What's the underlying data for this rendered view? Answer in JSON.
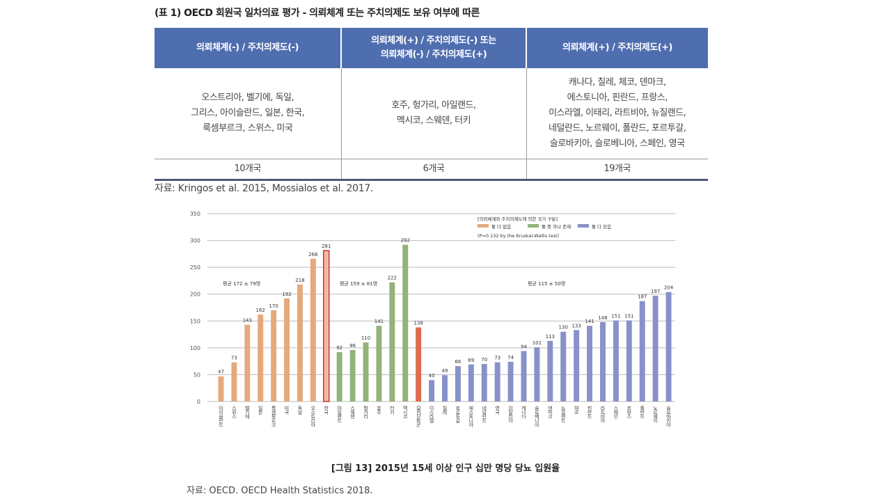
{
  "table": {
    "title": "(표 1) OECD 회원국 일차의료 평가 - 의뢰체계 또는 주치의제도 보유 여부에 따른",
    "headers": [
      "의뢰체계(-) / 주치의제도(-)",
      "의뢰체계(+) / 주치의제도(-) 또는\n의뢰체계(-) / 주치의제도(+)",
      "의뢰체계(+) / 주치의제도(+)"
    ],
    "countries": [
      [
        "오스트리아, 벨기에, 독일,",
        "그리스, 아이슬란드, 일본, 한국,",
        "룩셈부르크, 스위스, 미국"
      ],
      [
        "호주, 헝가리, 아일랜드,",
        "멕시코, 스웨덴, 터키"
      ],
      [
        "캐나다, 칠레, 체코, 덴마크,",
        "에스토니아, 핀란드, 프랑스,",
        "이스라엘, 이태리, 라트비아, 뉴질랜드,",
        "네덜란드, 노르웨이, 폴란드, 포르투갈,",
        "슬로바키아, 슬로베니아, 스페인, 영국"
      ]
    ],
    "counts": [
      "10개국",
      "6개국",
      "19개국"
    ],
    "source": "자료:  Kringos et al. 2015, Mossialos et al. 2017."
  },
  "figure": {
    "title": "[그림 13] 2015년 15세 이상 인구 십만 명당 당뇨 입원율",
    "source": "자료: OECD. OECD Health Statistics 2018."
  },
  "chart_data": {
    "type": "bar",
    "title": "",
    "xlabel": "",
    "ylabel": "",
    "ylim": [
      0,
      350
    ],
    "yticks": [
      0,
      50,
      100,
      150,
      200,
      250,
      300,
      350
    ],
    "grid": true,
    "legend_title": "[의뢰체계와 주치의제도에 의한 국가 구분]",
    "legend": [
      {
        "name": "둘 다 없음",
        "color": "#e5a97c"
      },
      {
        "name": "둘 중 하나 존재",
        "color": "#93b37a"
      },
      {
        "name": "둘 다 있음",
        "color": "#8892c8"
      }
    ],
    "legend_note": "(P=0.132 by the Kruskal-Wallis test)",
    "legend_position": "top-right",
    "annotations": [
      {
        "text": "평균 172 ± 79명",
        "group": "none"
      },
      {
        "text": "평균 159 ± 81명",
        "group": "one"
      },
      {
        "text": "평균 115 ± 50명",
        "group": "both"
      }
    ],
    "colors": {
      "none": "#e5a97c",
      "one": "#93b37a",
      "both": "#8892c8",
      "korea_fill": "#f3b9a3",
      "korea_stroke": "#c0392b",
      "oecd": "#dd6b4d"
    },
    "bars": [
      {
        "label": "아이슬란드",
        "value": 47,
        "group": "none"
      },
      {
        "label": "스위스",
        "value": 73,
        "group": "none"
      },
      {
        "label": "벨기에",
        "value": 143,
        "group": "none"
      },
      {
        "label": "일본",
        "value": 162,
        "group": "none"
      },
      {
        "label": "룩셈부르크",
        "value": 170,
        "group": "none"
      },
      {
        "label": "미국",
        "value": 192,
        "group": "none"
      },
      {
        "label": "독일",
        "value": 218,
        "group": "none"
      },
      {
        "label": "오스트리아",
        "value": 266,
        "group": "none"
      },
      {
        "label": "한국",
        "value": 281,
        "group": "korea"
      },
      {
        "label": "아일랜드",
        "value": 92,
        "group": "one"
      },
      {
        "label": "스웨덴",
        "value": 96,
        "group": "one"
      },
      {
        "label": "헝가리",
        "value": 110,
        "group": "one"
      },
      {
        "label": "호주",
        "value": 141,
        "group": "one"
      },
      {
        "label": "터키",
        "value": 222,
        "group": "one"
      },
      {
        "label": "멕시코",
        "value": 292,
        "group": "one"
      },
      {
        "label": "OECD 평균",
        "value": 138,
        "group": "oecd"
      },
      {
        "label": "이스라엘",
        "value": 40,
        "group": "both"
      },
      {
        "label": "칠레",
        "value": 49,
        "group": "both"
      },
      {
        "label": "포르투갈",
        "value": 66,
        "group": "both"
      },
      {
        "label": "에스토니아",
        "value": 69,
        "group": "both"
      },
      {
        "label": "네덜란드",
        "value": 70,
        "group": "both"
      },
      {
        "label": "영국",
        "value": 73,
        "group": "both"
      },
      {
        "label": "이탈리아",
        "value": 74,
        "group": "both"
      },
      {
        "label": "캐나다",
        "value": 94,
        "group": "both"
      },
      {
        "label": "슬로베니아",
        "value": 101,
        "group": "both"
      },
      {
        "label": "덴마크",
        "value": 113,
        "group": "both"
      },
      {
        "label": "뉴질랜드",
        "value": 130,
        "group": "both"
      },
      {
        "label": "체코",
        "value": 133,
        "group": "both"
      },
      {
        "label": "핀란드",
        "value": 141,
        "group": "both"
      },
      {
        "label": "라트비아",
        "value": 148,
        "group": "both"
      },
      {
        "label": "스페인",
        "value": 151,
        "group": "both"
      },
      {
        "label": "프랑스",
        "value": 151,
        "group": "both"
      },
      {
        "label": "폴란드",
        "value": 187,
        "group": "both"
      },
      {
        "label": "노르웨이",
        "value": 197,
        "group": "both"
      },
      {
        "label": "슬로바키아",
        "value": 204,
        "group": "both"
      }
    ]
  }
}
